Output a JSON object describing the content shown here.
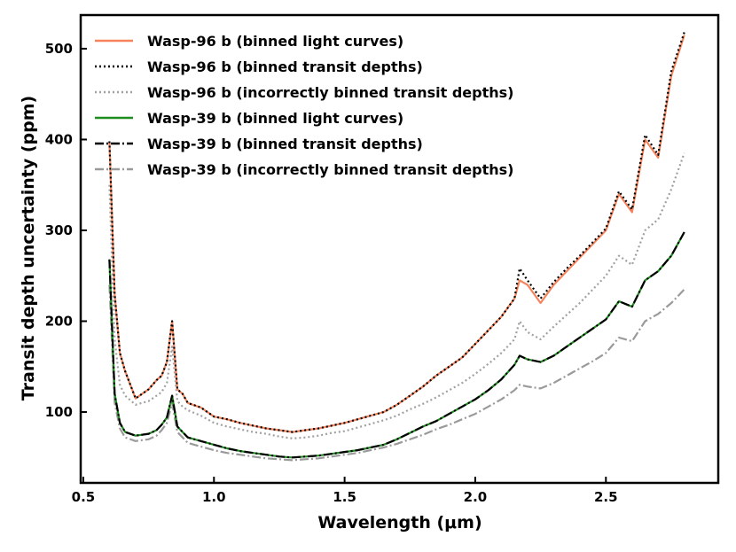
{
  "chart_data": {
    "type": "line",
    "title": "",
    "xlabel": "Wavelength (μm)",
    "ylabel": "Transit depth uncertainty (ppm)",
    "xlim": [
      0.49,
      2.93
    ],
    "ylim": [
      22,
      537
    ],
    "xticks": [
      0.5,
      1.0,
      1.5,
      2.0,
      2.5
    ],
    "xtick_labels": [
      "0.5",
      "1.0",
      "1.5",
      "2.0",
      "2.5"
    ],
    "yticks": [
      100,
      200,
      300,
      400,
      500
    ],
    "ytick_labels": [
      "100",
      "200",
      "300",
      "400",
      "500"
    ],
    "legend_position": "top-left",
    "x": [
      0.6,
      0.62,
      0.64,
      0.66,
      0.7,
      0.75,
      0.78,
      0.8,
      0.82,
      0.84,
      0.86,
      0.88,
      0.9,
      0.95,
      1.0,
      1.05,
      1.1,
      1.15,
      1.2,
      1.25,
      1.3,
      1.35,
      1.4,
      1.45,
      1.5,
      1.55,
      1.6,
      1.65,
      1.7,
      1.75,
      1.8,
      1.85,
      1.9,
      1.95,
      2.0,
      2.05,
      2.1,
      2.15,
      2.17,
      2.2,
      2.25,
      2.3,
      2.35,
      2.4,
      2.45,
      2.5,
      2.55,
      2.6,
      2.65,
      2.7,
      2.75,
      2.8
    ],
    "series": [
      {
        "name": "Wasp-96 b (binned light curves)",
        "color": "#f5845c",
        "dash": "solid",
        "values": [
          398,
          230,
          165,
          145,
          115,
          125,
          135,
          140,
          155,
          200,
          125,
          120,
          110,
          105,
          95,
          92,
          88,
          85,
          82,
          80,
          78,
          80,
          82,
          85,
          88,
          92,
          96,
          100,
          108,
          118,
          128,
          140,
          150,
          160,
          175,
          190,
          205,
          225,
          245,
          240,
          220,
          240,
          255,
          270,
          285,
          300,
          340,
          320,
          400,
          380,
          470,
          515
        ]
      },
      {
        "name": "Wasp-96 b (binned transit depths)",
        "color": "#000000",
        "dash": "dotted",
        "values": [
          398,
          230,
          165,
          145,
          115,
          125,
          135,
          140,
          155,
          200,
          125,
          120,
          110,
          105,
          95,
          92,
          88,
          85,
          82,
          80,
          78,
          80,
          82,
          85,
          88,
          92,
          96,
          100,
          108,
          118,
          128,
          140,
          150,
          160,
          175,
          190,
          205,
          225,
          258,
          245,
          225,
          243,
          258,
          272,
          287,
          302,
          343,
          323,
          405,
          383,
          475,
          518
        ]
      },
      {
        "name": "Wasp-96 b (incorrectly binned transit depths)",
        "color": "#a0a0a0",
        "dash": "dotted",
        "values": [
          350,
          180,
          130,
          118,
          108,
          112,
          118,
          122,
          132,
          172,
          112,
          106,
          102,
          96,
          88,
          84,
          81,
          78,
          76,
          73,
          71,
          72,
          74,
          77,
          79,
          83,
          87,
          91,
          96,
          103,
          109,
          116,
          124,
          132,
          142,
          153,
          165,
          180,
          200,
          188,
          180,
          194,
          207,
          220,
          235,
          250,
          272,
          262,
          300,
          312,
          345,
          385
        ]
      },
      {
        "name": "Wasp-39 b (binned light curves)",
        "color": "#1e8c1e",
        "dash": "solid",
        "values": [
          268,
          120,
          88,
          78,
          74,
          76,
          80,
          86,
          94,
          118,
          84,
          78,
          72,
          68,
          64,
          60,
          57,
          55,
          53,
          51,
          50,
          51,
          52,
          54,
          56,
          58,
          61,
          64,
          70,
          77,
          84,
          90,
          98,
          106,
          114,
          124,
          136,
          152,
          162,
          158,
          155,
          162,
          172,
          182,
          192,
          202,
          222,
          216,
          245,
          255,
          272,
          298
        ]
      },
      {
        "name": "Wasp-39 b (binned transit depths)",
        "color": "#000000",
        "dash": "dashdot",
        "values": [
          268,
          120,
          88,
          78,
          74,
          76,
          80,
          86,
          94,
          118,
          84,
          78,
          72,
          68,
          64,
          60,
          57,
          55,
          53,
          51,
          50,
          51,
          52,
          54,
          56,
          58,
          61,
          64,
          70,
          77,
          84,
          90,
          98,
          106,
          114,
          124,
          136,
          152,
          162,
          158,
          155,
          162,
          172,
          182,
          192,
          202,
          222,
          216,
          245,
          255,
          272,
          298
        ]
      },
      {
        "name": "Wasp-39 b (incorrectly binned transit depths)",
        "color": "#9a9a9a",
        "dash": "dashdot",
        "values": [
          240,
          110,
          82,
          72,
          68,
          70,
          74,
          80,
          88,
          110,
          78,
          72,
          66,
          62,
          58,
          55,
          53,
          51,
          49,
          48,
          47,
          48,
          49,
          51,
          53,
          55,
          58,
          61,
          65,
          70,
          75,
          81,
          86,
          92,
          98,
          106,
          114,
          124,
          130,
          128,
          126,
          132,
          140,
          148,
          156,
          165,
          182,
          178,
          200,
          208,
          220,
          235
        ]
      }
    ]
  }
}
